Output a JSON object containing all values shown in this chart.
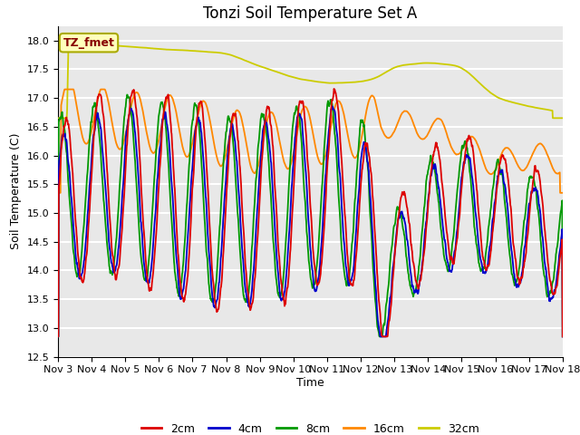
{
  "title": "Tonzi Soil Temperature Set A",
  "xlabel": "Time",
  "ylabel": "Soil Temperature (C)",
  "ylim": [
    12.5,
    18.25
  ],
  "xlim": [
    0,
    15
  ],
  "xtick_labels": [
    "Nov 3",
    "Nov 4",
    "Nov 5",
    "Nov 6",
    "Nov 7",
    "Nov 8",
    "Nov 9",
    "Nov 10",
    "Nov 11",
    "Nov 12",
    "Nov 13",
    "Nov 14",
    "Nov 15",
    "Nov 16",
    "Nov 17",
    "Nov 18"
  ],
  "ytick_vals": [
    12.5,
    13.0,
    13.5,
    14.0,
    14.5,
    15.0,
    15.5,
    16.0,
    16.5,
    17.0,
    17.5,
    18.0
  ],
  "colors": {
    "2cm": "#dd0000",
    "4cm": "#0000cc",
    "8cm": "#009900",
    "16cm": "#ff8800",
    "32cm": "#cccc00"
  },
  "annotation_text": "TZ_fmet",
  "annotation_color": "#880000",
  "annotation_bg": "#ffffbb",
  "annotation_edge": "#aaaa00",
  "bg_color": "#e8e8e8",
  "grid_color": "#ffffff",
  "linewidth": 1.3,
  "title_fontsize": 12,
  "axis_label_fontsize": 9,
  "tick_fontsize": 8,
  "legend_fontsize": 9
}
